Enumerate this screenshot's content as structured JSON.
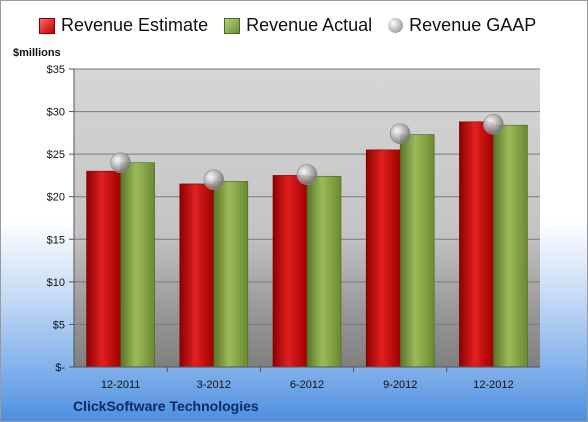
{
  "legend": {
    "estimate": "Revenue Estimate",
    "actual": "Revenue Actual",
    "gaap": "Revenue GAAP"
  },
  "units_label": "$millions",
  "company": "ClickSoftware Technologies",
  "colors": {
    "estimate": "#c00000",
    "actual": "#77933c",
    "gaap": "#a6a6a6"
  },
  "chart_data": {
    "type": "bar",
    "categories": [
      "12-2011",
      "3-2012",
      "6-2012",
      "9-2012",
      "12-2012"
    ],
    "series": [
      {
        "name": "Revenue Estimate",
        "values": [
          23.0,
          21.5,
          22.5,
          25.5,
          28.8
        ]
      },
      {
        "name": "Revenue Actual",
        "values": [
          24.0,
          21.8,
          22.4,
          27.3,
          28.4
        ]
      },
      {
        "name": "Revenue GAAP",
        "values": [
          24.0,
          22.0,
          22.6,
          27.4,
          28.5
        ],
        "marker": "circle"
      }
    ],
    "ylim": [
      0,
      35
    ],
    "yticks": [
      0,
      5,
      10,
      15,
      20,
      25,
      30,
      35
    ],
    "ytick_labels": [
      "$-",
      "$5",
      "$10",
      "$15",
      "$20",
      "$25",
      "$30",
      "$35"
    ],
    "ylabel": "$millions",
    "grid": true,
    "legend_position": "top"
  }
}
